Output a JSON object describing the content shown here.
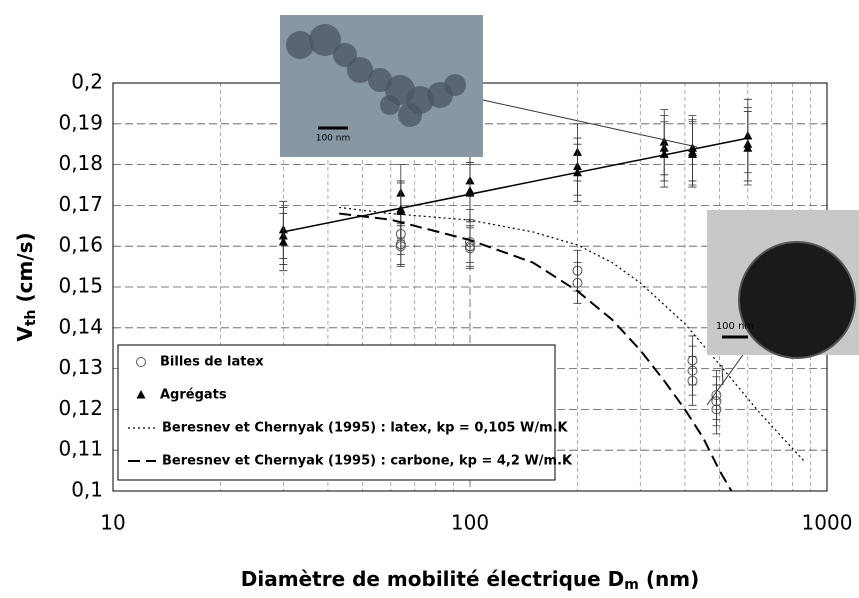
{
  "chart_data": {
    "type": "scatter",
    "xlog": true,
    "xlim": [
      10,
      1000
    ],
    "xticks": [
      10,
      100,
      1000
    ],
    "ylim": [
      0.1,
      0.2
    ],
    "yticks": [
      {
        "value": 0.1,
        "label": "0,1"
      },
      {
        "value": 0.11,
        "label": "0,11"
      },
      {
        "value": 0.12,
        "label": "0,12"
      },
      {
        "value": 0.13,
        "label": "0,13"
      },
      {
        "value": 0.14,
        "label": "0,14"
      },
      {
        "value": 0.15,
        "label": "0,15"
      },
      {
        "value": 0.16,
        "label": "0,16"
      },
      {
        "value": 0.17,
        "label": "0,17"
      },
      {
        "value": 0.18,
        "label": "0,18"
      },
      {
        "value": 0.19,
        "label": "0,19"
      },
      {
        "value": 0.2,
        "label": "0,2"
      }
    ],
    "grid": true,
    "x_label": {
      "main": "Diamètre de mobilité électrique D",
      "sub": "m",
      "unit": " (nm)"
    },
    "y_label": {
      "main": "V",
      "sub": "th",
      "unit": " (cm/s)"
    },
    "series": [
      {
        "name": "Billes de latex",
        "marker": "circle",
        "color": "#555555",
        "x": [
          64,
          64,
          64,
          100,
          100,
          100,
          200,
          200,
          420,
          420,
          420,
          490,
          490,
          490
        ],
        "values": [
          0.163,
          0.1605,
          0.16,
          0.161,
          0.16,
          0.1595,
          0.154,
          0.151,
          0.132,
          0.1295,
          0.127,
          0.1235,
          0.122,
          0.12
        ],
        "errors": [
          0.005,
          0.005,
          0.005,
          0.005,
          0.005,
          0.005,
          0.005,
          0.005,
          0.006,
          0.006,
          0.006,
          0.006,
          0.006,
          0.006
        ]
      },
      {
        "name": "Agrégats",
        "marker": "triangle",
        "color": "#000000",
        "x": [
          30,
          30,
          30,
          64,
          64,
          64,
          100,
          100,
          100,
          200,
          200,
          200,
          350,
          350,
          350,
          420,
          420,
          420,
          600,
          600,
          600
        ],
        "values": [
          0.164,
          0.1625,
          0.161,
          0.173,
          0.169,
          0.1685,
          0.176,
          0.1735,
          0.173,
          0.183,
          0.1795,
          0.178,
          0.1855,
          0.184,
          0.1825,
          0.184,
          0.183,
          0.1825,
          0.187,
          0.185,
          0.184
        ],
        "errors": [
          0.007,
          0.007,
          0.007,
          0.007,
          0.007,
          0.007,
          0.007,
          0.007,
          0.007,
          0.007,
          0.007,
          0.007,
          0.008,
          0.008,
          0.008,
          0.008,
          0.008,
          0.008,
          0.009,
          0.009,
          0.009
        ]
      },
      {
        "marker": "none",
        "style": "solid",
        "color": "#000000",
        "x": [
          30,
          600
        ],
        "values": [
          0.1635,
          0.1865
        ]
      },
      {
        "name": "Beresnev et Chernyak (1995) : latex, kp = 0,105 W/m.K",
        "marker": "none",
        "style": "dotted",
        "color": "#000000",
        "x": [
          43,
          60,
          100,
          150,
          200,
          250,
          300,
          400,
          500,
          650,
          870
        ],
        "values": [
          0.1695,
          0.168,
          0.1664,
          0.1635,
          0.1603,
          0.156,
          0.151,
          0.141,
          0.131,
          0.119,
          0.107
        ]
      },
      {
        "name": "Beresnev et Chernyak (1995) : carbone, kp = 4,2 W/m.K",
        "marker": "none",
        "style": "dashed",
        "color": "#000000",
        "x": [
          43,
          60,
          100,
          150,
          200,
          250,
          300,
          350,
          400,
          450,
          500,
          540
        ],
        "values": [
          0.168,
          0.1665,
          0.1615,
          0.156,
          0.149,
          0.142,
          0.1345,
          0.127,
          0.12,
          0.113,
          0.105,
          0.1
        ]
      }
    ],
    "insets": [
      {
        "label": "100 nm"
      },
      {
        "label": "100 nm"
      }
    ]
  }
}
